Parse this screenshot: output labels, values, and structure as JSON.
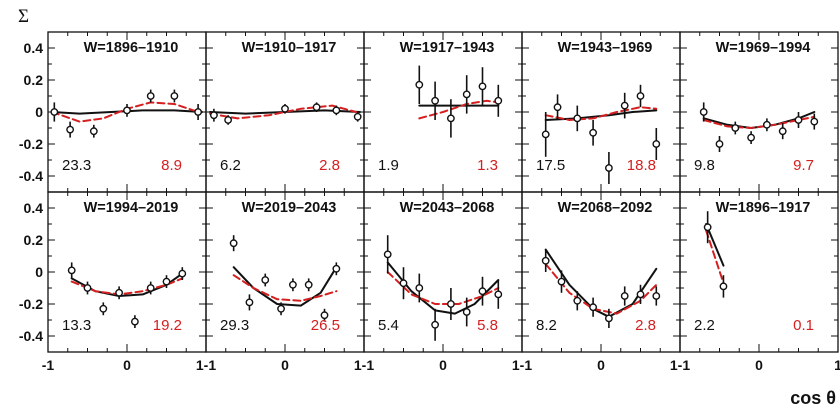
{
  "figure": {
    "y_axis_symbol": "Σ",
    "x_axis_label": "cos θ",
    "y_ticks": [
      -0.4,
      -0.2,
      0,
      0.2,
      0.4
    ],
    "y_tick_labels": [
      "-0.4",
      "-0.2",
      "0",
      "0.2",
      "0.4"
    ],
    "x_tick_labels": [
      "-1",
      "0",
      "1-1",
      "0",
      "1-1",
      "0",
      "1-1",
      "0",
      "1-1",
      "0",
      "1"
    ],
    "black_color": "#111111",
    "red_color": "#d42020"
  },
  "chart_data": [
    {
      "type": "scatter",
      "row": 0,
      "col": 0,
      "title": "W=1896–1910",
      "xlim": [
        -1,
        1
      ],
      "ylim": [
        -0.5,
        0.5
      ],
      "value_black": "23.3",
      "value_red": "8.9",
      "points": [
        {
          "x": -0.92,
          "y": 0.0,
          "err": 0.06
        },
        {
          "x": -0.72,
          "y": -0.11,
          "err": 0.05
        },
        {
          "x": -0.42,
          "y": -0.12,
          "err": 0.04
        },
        {
          "x": 0.0,
          "y": 0.01,
          "err": 0.04
        },
        {
          "x": 0.3,
          "y": 0.1,
          "err": 0.04
        },
        {
          "x": 0.6,
          "y": 0.1,
          "err": 0.04
        },
        {
          "x": 0.9,
          "y": 0.0,
          "err": 0.05
        }
      ],
      "fit_black": [
        [
          -0.95,
          0.0
        ],
        [
          -0.6,
          -0.01
        ],
        [
          -0.2,
          0.0
        ],
        [
          0.2,
          0.01
        ],
        [
          0.6,
          0.01
        ],
        [
          0.95,
          0.0
        ]
      ],
      "fit_red": [
        [
          -0.95,
          0.0
        ],
        [
          -0.6,
          -0.06
        ],
        [
          -0.3,
          -0.04
        ],
        [
          0.0,
          0.02
        ],
        [
          0.3,
          0.06
        ],
        [
          0.6,
          0.05
        ],
        [
          0.9,
          0.0
        ]
      ]
    },
    {
      "type": "scatter",
      "row": 0,
      "col": 1,
      "title": "W=1910–1917",
      "xlim": [
        -1,
        1
      ],
      "ylim": [
        -0.5,
        0.5
      ],
      "value_black": "6.2",
      "value_red": "2.8",
      "points": [
        {
          "x": -0.9,
          "y": -0.02,
          "err": 0.04
        },
        {
          "x": -0.72,
          "y": -0.05,
          "err": 0.03
        },
        {
          "x": 0.0,
          "y": 0.02,
          "err": 0.03
        },
        {
          "x": 0.4,
          "y": 0.03,
          "err": 0.03
        },
        {
          "x": 0.65,
          "y": 0.01,
          "err": 0.03
        },
        {
          "x": 0.92,
          "y": -0.03,
          "err": 0.03
        }
      ],
      "fit_black": [
        [
          -0.95,
          0.0
        ],
        [
          -0.5,
          -0.01
        ],
        [
          0.0,
          0.0
        ],
        [
          0.5,
          0.01
        ],
        [
          0.95,
          0.0
        ]
      ],
      "fit_red": [
        [
          -0.95,
          -0.01
        ],
        [
          -0.6,
          -0.04
        ],
        [
          -0.2,
          -0.02
        ],
        [
          0.2,
          0.02
        ],
        [
          0.6,
          0.04
        ],
        [
          0.9,
          0.0
        ]
      ]
    },
    {
      "type": "scatter",
      "row": 0,
      "col": 2,
      "title": "W=1917–1943",
      "xlim": [
        -1,
        1
      ],
      "ylim": [
        -0.5,
        0.5
      ],
      "value_black": "1.9",
      "value_red": "1.3",
      "points": [
        {
          "x": -0.3,
          "y": 0.17,
          "err": 0.12
        },
        {
          "x": -0.1,
          "y": 0.07,
          "err": 0.12
        },
        {
          "x": 0.1,
          "y": -0.04,
          "err": 0.12
        },
        {
          "x": 0.3,
          "y": 0.11,
          "err": 0.12
        },
        {
          "x": 0.5,
          "y": 0.16,
          "err": 0.12
        },
        {
          "x": 0.7,
          "y": 0.07,
          "err": 0.1
        }
      ],
      "fit_black": [
        [
          -0.3,
          0.04
        ],
        [
          0.0,
          0.04
        ],
        [
          0.3,
          0.04
        ],
        [
          0.7,
          0.04
        ]
      ],
      "fit_red": [
        [
          -0.3,
          -0.04
        ],
        [
          0.0,
          0.0
        ],
        [
          0.3,
          0.05
        ],
        [
          0.55,
          0.07
        ],
        [
          0.7,
          0.06
        ]
      ]
    },
    {
      "type": "scatter",
      "row": 0,
      "col": 3,
      "title": "W=1943–1969",
      "xlim": [
        -1,
        1
      ],
      "ylim": [
        -0.5,
        0.5
      ],
      "value_black": "17.5",
      "value_red": "18.8",
      "points": [
        {
          "x": -0.7,
          "y": -0.14,
          "err": 0.14
        },
        {
          "x": -0.55,
          "y": 0.03,
          "err": 0.08
        },
        {
          "x": -0.3,
          "y": -0.04,
          "err": 0.08
        },
        {
          "x": -0.1,
          "y": -0.13,
          "err": 0.08
        },
        {
          "x": 0.1,
          "y": -0.35,
          "err": 0.1
        },
        {
          "x": 0.3,
          "y": 0.04,
          "err": 0.08
        },
        {
          "x": 0.5,
          "y": 0.1,
          "err": 0.07
        },
        {
          "x": 0.7,
          "y": -0.2,
          "err": 0.1
        }
      ],
      "fit_black": [
        [
          -0.7,
          -0.05
        ],
        [
          -0.3,
          -0.04
        ],
        [
          0.1,
          -0.02
        ],
        [
          0.4,
          0.0
        ],
        [
          0.7,
          0.01
        ]
      ],
      "fit_red": [
        [
          -0.7,
          -0.02
        ],
        [
          -0.4,
          -0.05
        ],
        [
          -0.1,
          -0.04
        ],
        [
          0.2,
          0.0
        ],
        [
          0.5,
          0.03
        ],
        [
          0.7,
          0.02
        ]
      ]
    },
    {
      "type": "scatter",
      "row": 0,
      "col": 4,
      "title": "W=1969–1994",
      "xlim": [
        -1,
        1
      ],
      "ylim": [
        -0.5,
        0.5
      ],
      "value_black": "9.8",
      "value_red": "9.7",
      "points": [
        {
          "x": -0.7,
          "y": 0.0,
          "err": 0.06
        },
        {
          "x": -0.5,
          "y": -0.2,
          "err": 0.05
        },
        {
          "x": -0.3,
          "y": -0.1,
          "err": 0.04
        },
        {
          "x": -0.1,
          "y": -0.16,
          "err": 0.04
        },
        {
          "x": 0.1,
          "y": -0.08,
          "err": 0.04
        },
        {
          "x": 0.3,
          "y": -0.12,
          "err": 0.05
        },
        {
          "x": 0.5,
          "y": -0.05,
          "err": 0.05
        },
        {
          "x": 0.7,
          "y": -0.06,
          "err": 0.05
        }
      ],
      "fit_black": [
        [
          -0.7,
          -0.04
        ],
        [
          -0.4,
          -0.08
        ],
        [
          -0.1,
          -0.1
        ],
        [
          0.2,
          -0.08
        ],
        [
          0.5,
          -0.04
        ],
        [
          0.7,
          0.0
        ]
      ],
      "fit_red": [
        [
          -0.7,
          -0.05
        ],
        [
          -0.4,
          -0.09
        ],
        [
          -0.1,
          -0.1
        ],
        [
          0.2,
          -0.08
        ],
        [
          0.5,
          -0.05
        ],
        [
          0.7,
          -0.03
        ]
      ]
    },
    {
      "type": "scatter",
      "row": 1,
      "col": 0,
      "title": "W=1994–2019",
      "xlim": [
        -1,
        1
      ],
      "ylim": [
        -0.5,
        0.5
      ],
      "value_black": "13.3",
      "value_red": "19.2",
      "points": [
        {
          "x": -0.7,
          "y": 0.01,
          "err": 0.05
        },
        {
          "x": -0.5,
          "y": -0.1,
          "err": 0.04
        },
        {
          "x": -0.3,
          "y": -0.23,
          "err": 0.04
        },
        {
          "x": -0.1,
          "y": -0.13,
          "err": 0.04
        },
        {
          "x": 0.1,
          "y": -0.31,
          "err": 0.04
        },
        {
          "x": 0.3,
          "y": -0.1,
          "err": 0.04
        },
        {
          "x": 0.5,
          "y": -0.06,
          "err": 0.04
        },
        {
          "x": 0.7,
          "y": -0.01,
          "err": 0.04
        }
      ],
      "fit_black": [
        [
          -0.7,
          -0.04
        ],
        [
          -0.4,
          -0.12
        ],
        [
          -0.1,
          -0.15
        ],
        [
          0.2,
          -0.14
        ],
        [
          0.5,
          -0.08
        ],
        [
          0.7,
          -0.01
        ]
      ],
      "fit_red": [
        [
          -0.7,
          -0.06
        ],
        [
          -0.4,
          -0.12
        ],
        [
          -0.1,
          -0.14
        ],
        [
          0.2,
          -0.12
        ],
        [
          0.5,
          -0.08
        ],
        [
          0.7,
          -0.04
        ]
      ]
    },
    {
      "type": "scatter",
      "row": 1,
      "col": 1,
      "title": "W=2019–2043",
      "xlim": [
        -1,
        1
      ],
      "ylim": [
        -0.5,
        0.5
      ],
      "value_black": "29.3",
      "value_red": "26.5",
      "points": [
        {
          "x": -0.65,
          "y": 0.18,
          "err": 0.05
        },
        {
          "x": -0.45,
          "y": -0.19,
          "err": 0.05
        },
        {
          "x": -0.25,
          "y": -0.05,
          "err": 0.04
        },
        {
          "x": -0.05,
          "y": -0.23,
          "err": 0.04
        },
        {
          "x": 0.1,
          "y": -0.08,
          "err": 0.04
        },
        {
          "x": 0.3,
          "y": -0.08,
          "err": 0.04
        },
        {
          "x": 0.5,
          "y": -0.27,
          "err": 0.04
        },
        {
          "x": 0.65,
          "y": 0.02,
          "err": 0.04
        }
      ],
      "fit_black": [
        [
          -0.65,
          0.03
        ],
        [
          -0.4,
          -0.1
        ],
        [
          -0.1,
          -0.2
        ],
        [
          0.2,
          -0.21
        ],
        [
          0.45,
          -0.13
        ],
        [
          0.65,
          0.03
        ]
      ],
      "fit_red": [
        [
          -0.65,
          -0.02
        ],
        [
          -0.4,
          -0.1
        ],
        [
          -0.1,
          -0.17
        ],
        [
          0.2,
          -0.18
        ],
        [
          0.45,
          -0.15
        ],
        [
          0.65,
          -0.12
        ]
      ]
    },
    {
      "type": "scatter",
      "row": 1,
      "col": 2,
      "title": "W=2043–2068",
      "xlim": [
        -1,
        1
      ],
      "ylim": [
        -0.5,
        0.5
      ],
      "value_black": "5.4",
      "value_red": "5.8",
      "points": [
        {
          "x": -0.7,
          "y": 0.11,
          "err": 0.12
        },
        {
          "x": -0.5,
          "y": -0.07,
          "err": 0.1
        },
        {
          "x": -0.3,
          "y": -0.1,
          "err": 0.09
        },
        {
          "x": -0.1,
          "y": -0.33,
          "err": 0.1
        },
        {
          "x": 0.1,
          "y": -0.2,
          "err": 0.1
        },
        {
          "x": 0.3,
          "y": -0.25,
          "err": 0.09
        },
        {
          "x": 0.5,
          "y": -0.12,
          "err": 0.09
        },
        {
          "x": 0.7,
          "y": -0.14,
          "err": 0.09
        }
      ],
      "fit_black": [
        [
          -0.7,
          0.06
        ],
        [
          -0.4,
          -0.12
        ],
        [
          -0.1,
          -0.24
        ],
        [
          0.15,
          -0.26
        ],
        [
          0.4,
          -0.2
        ],
        [
          0.7,
          -0.05
        ]
      ],
      "fit_red": [
        [
          -0.7,
          0.0
        ],
        [
          -0.4,
          -0.14
        ],
        [
          -0.1,
          -0.2
        ],
        [
          0.2,
          -0.2
        ],
        [
          0.5,
          -0.15
        ],
        [
          0.7,
          -0.1
        ]
      ]
    },
    {
      "type": "scatter",
      "row": 1,
      "col": 3,
      "title": "W=2068–2092",
      "xlim": [
        -1,
        1
      ],
      "ylim": [
        -0.5,
        0.5
      ],
      "value_black": "8.2",
      "value_red": "2.8",
      "points": [
        {
          "x": -0.7,
          "y": 0.07,
          "err": 0.07
        },
        {
          "x": -0.5,
          "y": -0.06,
          "err": 0.07
        },
        {
          "x": -0.3,
          "y": -0.18,
          "err": 0.06
        },
        {
          "x": -0.1,
          "y": -0.22,
          "err": 0.06
        },
        {
          "x": 0.1,
          "y": -0.29,
          "err": 0.06
        },
        {
          "x": 0.3,
          "y": -0.15,
          "err": 0.06
        },
        {
          "x": 0.5,
          "y": -0.14,
          "err": 0.06
        },
        {
          "x": 0.7,
          "y": -0.15,
          "err": 0.06
        }
      ],
      "fit_black": [
        [
          -0.7,
          0.14
        ],
        [
          -0.4,
          -0.08
        ],
        [
          -0.1,
          -0.23
        ],
        [
          0.1,
          -0.28
        ],
        [
          0.4,
          -0.2
        ],
        [
          0.7,
          0.02
        ]
      ],
      "fit_red": [
        [
          -0.7,
          0.05
        ],
        [
          -0.4,
          -0.13
        ],
        [
          -0.1,
          -0.23
        ],
        [
          0.2,
          -0.26
        ],
        [
          0.5,
          -0.18
        ],
        [
          0.7,
          -0.08
        ]
      ]
    },
    {
      "type": "scatter",
      "row": 1,
      "col": 4,
      "title": "W=1896–1917",
      "xlim": [
        -1,
        1
      ],
      "ylim": [
        -0.5,
        0.5
      ],
      "value_black": "2.2",
      "value_red": "0.1",
      "points": [
        {
          "x": -0.65,
          "y": 0.28,
          "err": 0.1
        },
        {
          "x": -0.45,
          "y": -0.09,
          "err": 0.07
        }
      ],
      "fit_black": [
        [
          -0.67,
          0.3
        ],
        [
          -0.45,
          0.04
        ]
      ],
      "fit_red": [
        [
          -0.67,
          0.26
        ],
        [
          -0.45,
          -0.07
        ]
      ]
    }
  ]
}
